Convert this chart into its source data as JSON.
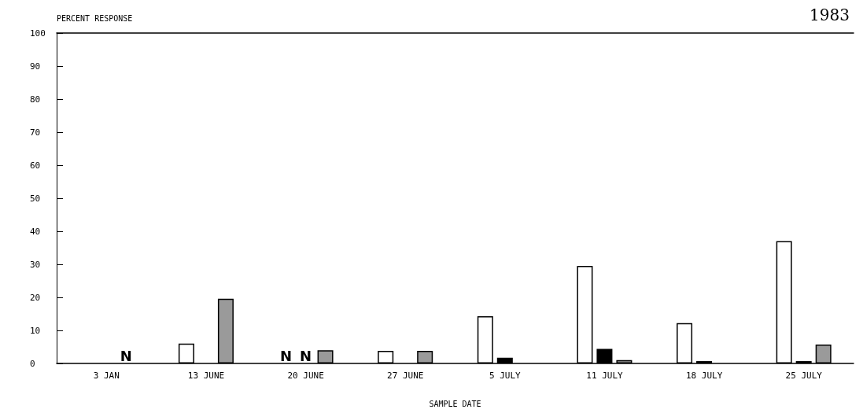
{
  "chart_data": {
    "type": "bar",
    "title": "1983",
    "xlabel": "SAMPLE DATE",
    "ylabel": "PERCENT RESPONSE",
    "categories": [
      "3 JAN",
      "13 JUNE",
      "20 JUNE",
      "27 JUNE",
      "5 JULY",
      "11 JULY",
      "18 JULY",
      "25 JULY"
    ],
    "series": [
      {
        "color": "#ffffff",
        "values": [
          null,
          6,
          null,
          3.8,
          14.3,
          29.5,
          12.2,
          37
        ],
        "value_labels": [
          null,
          null,
          "N",
          null,
          null,
          null,
          null,
          null
        ]
      },
      {
        "color": "#000000",
        "values": [
          null,
          null,
          null,
          null,
          1.7,
          4.4,
          0.7,
          0.7
        ],
        "value_labels": [
          null,
          null,
          "N",
          null,
          null,
          null,
          null,
          null
        ]
      },
      {
        "color": "#9a9a9a",
        "values": [
          null,
          19.6,
          4,
          3.8,
          null,
          1,
          null,
          5.7
        ],
        "value_labels": [
          "N",
          null,
          null,
          null,
          null,
          null,
          null,
          null
        ]
      }
    ],
    "ylim": [
      0,
      100
    ],
    "yticks": [
      0,
      10,
      20,
      30,
      40,
      50,
      60,
      70,
      80,
      90,
      100
    ],
    "grid": false
  }
}
